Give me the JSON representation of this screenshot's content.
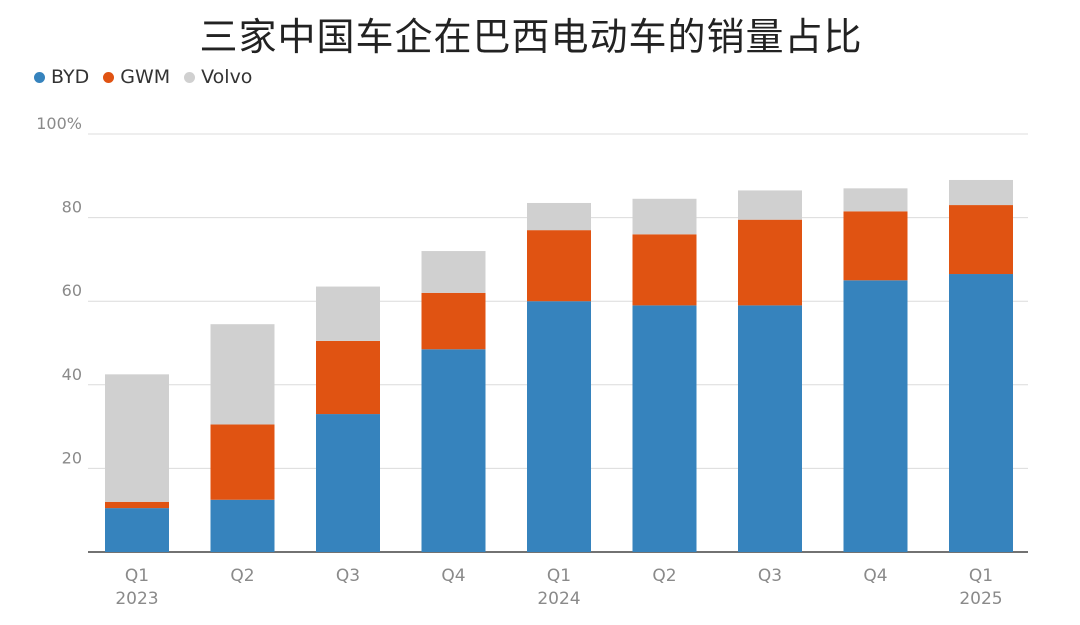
{
  "chart_data": {
    "type": "bar",
    "stacked": true,
    "title": "三家中国车企在巴西电动车的销量占比",
    "categories": [
      "Q1",
      "Q2",
      "Q3",
      "Q4",
      "Q1",
      "Q2",
      "Q3",
      "Q4",
      "Q1"
    ],
    "years": [
      "2023",
      "",
      "",
      "",
      "2024",
      "",
      "",
      "",
      "2025"
    ],
    "series": [
      {
        "name": "BYD",
        "color": "#3683bd",
        "values": [
          10.5,
          12.5,
          33,
          48.5,
          60,
          59,
          59,
          65,
          66.5
        ]
      },
      {
        "name": "GWM",
        "color": "#e05312",
        "values": [
          1.5,
          18,
          17.5,
          13.5,
          17,
          17,
          20.5,
          16.5,
          16.5
        ]
      },
      {
        "name": "Volvo",
        "color": "#d0d0d0",
        "values": [
          30.5,
          24,
          13,
          10,
          6.5,
          8.5,
          7,
          5.5,
          6
        ]
      }
    ],
    "ylim": [
      0,
      100
    ],
    "yticks": [
      "20",
      "40",
      "60",
      "80",
      "100%"
    ],
    "ytick_values": [
      20,
      40,
      60,
      80,
      100
    ],
    "grid": true,
    "legend": "top-left"
  }
}
